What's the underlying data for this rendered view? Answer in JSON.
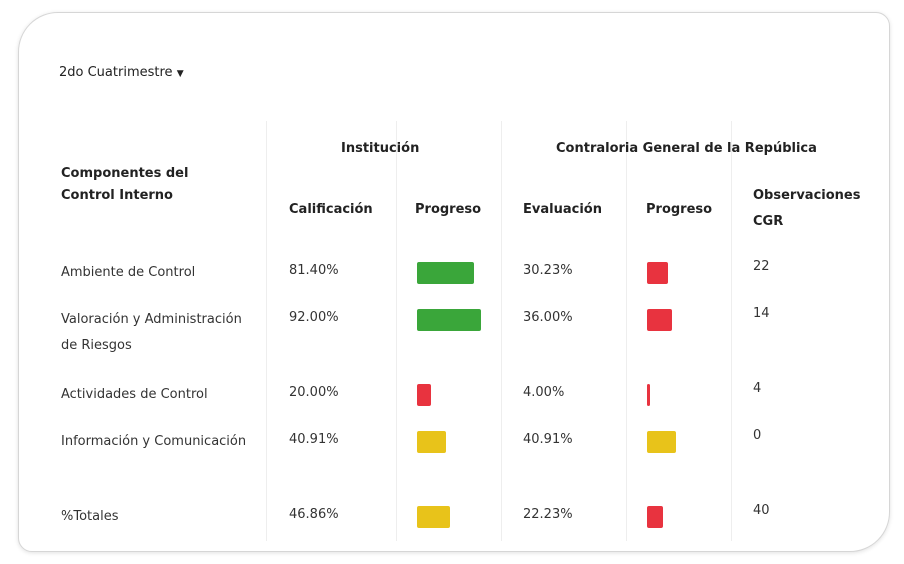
{
  "dropdown": "2do Cuatrimestre",
  "header": {
    "component": "Componentes del Control Interno",
    "groups": [
      "Institución",
      "Contraloria General de la República"
    ],
    "columns": [
      "Calificación",
      "Progreso",
      "Evaluación",
      "Progreso",
      "Observaciones CGR"
    ]
  },
  "table": {
    "rows": [
      {
        "name": "Ambiente de Control",
        "calificacion": {
          "value": 81.4,
          "label": "81.40%",
          "color": "#3aa63a"
        },
        "evaluacion": {
          "value": 30.23,
          "label": "30.23%",
          "color": "#e8333f"
        },
        "observaciones": 22
      },
      {
        "name": "Valoración y Administración de Riesgos",
        "calificacion": {
          "value": 92.0,
          "label": "92.00%",
          "color": "#3aa63a"
        },
        "evaluacion": {
          "value": 36.0,
          "label": "36.00%",
          "color": "#e8333f"
        },
        "observaciones": 14
      },
      {
        "name": "Actividades de Control",
        "calificacion": {
          "value": 20.0,
          "label": "20.00%",
          "color": "#e8333f"
        },
        "evaluacion": {
          "value": 4.0,
          "label": "4.00%",
          "color": "#e8333f"
        },
        "observaciones": 4
      },
      {
        "name": "Información y Comunicación",
        "calificacion": {
          "value": 40.91,
          "label": "40.91%",
          "color": "#e8c31a"
        },
        "evaluacion": {
          "value": 40.91,
          "label": "40.91%",
          "color": "#e8c31a"
        },
        "observaciones": 0
      },
      {
        "name": "%Totales",
        "calificacion": {
          "value": 46.86,
          "label": "46.86%",
          "color": "#e8c31a"
        },
        "evaluacion": {
          "value": 22.23,
          "label": "22.23%",
          "color": "#e8333f"
        },
        "observaciones": 40
      }
    ]
  }
}
